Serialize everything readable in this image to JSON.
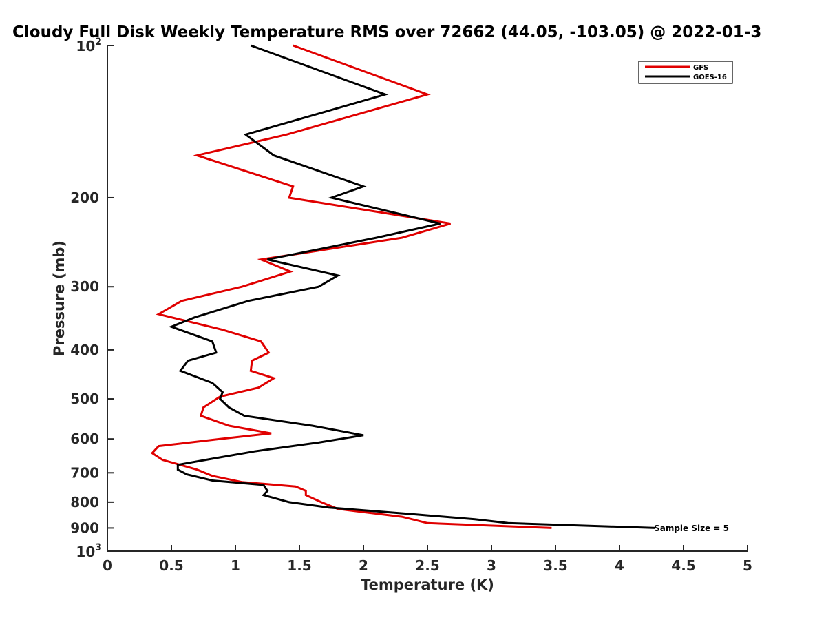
{
  "chart_data": {
    "type": "line",
    "title": "Cloudy Full Disk Weekly Temperature RMS over 72662 (44.05, -103.05) @ 2022-01-3",
    "xlabel": "Temperature (K)",
    "ylabel": "Pressure (mb)",
    "xlim": [
      0,
      5
    ],
    "ylim": [
      100,
      1000
    ],
    "y_scale": "log",
    "y_reversed": true,
    "grid": false,
    "legend_position": "top-right",
    "x_ticks": [
      {
        "value": 0,
        "label": "0"
      },
      {
        "value": 0.5,
        "label": "0.5"
      },
      {
        "value": 1,
        "label": "1"
      },
      {
        "value": 1.5,
        "label": "1.5"
      },
      {
        "value": 2,
        "label": "2"
      },
      {
        "value": 2.5,
        "label": "2.5"
      },
      {
        "value": 3,
        "label": "3"
      },
      {
        "value": 3.5,
        "label": "3.5"
      },
      {
        "value": 4,
        "label": "4"
      },
      {
        "value": 4.5,
        "label": "4.5"
      },
      {
        "value": 5,
        "label": "5"
      }
    ],
    "y_ticks": [
      {
        "value": 200,
        "label": "200"
      },
      {
        "value": 300,
        "label": "300"
      },
      {
        "value": 400,
        "label": "400"
      },
      {
        "value": 500,
        "label": "500"
      },
      {
        "value": 600,
        "label": "600"
      },
      {
        "value": 700,
        "label": "700"
      },
      {
        "value": 800,
        "label": "800"
      },
      {
        "value": 900,
        "label": "900"
      }
    ],
    "y_power_ticks": [
      {
        "value": 100,
        "base": "10",
        "exp": "2"
      },
      {
        "value": 1000,
        "base": "10",
        "exp": "3"
      }
    ],
    "annotation": "Sample Size = 5",
    "series": [
      {
        "name": "GFS",
        "color": "#e00000",
        "points": [
          [
            1.45,
            100
          ],
          [
            2.5,
            125
          ],
          [
            1.4,
            150
          ],
          [
            0.7,
            165
          ],
          [
            1.45,
            190
          ],
          [
            1.42,
            200
          ],
          [
            2.68,
            225
          ],
          [
            2.3,
            240
          ],
          [
            1.2,
            265
          ],
          [
            1.43,
            280
          ],
          [
            1.05,
            300
          ],
          [
            0.58,
            320
          ],
          [
            0.4,
            340
          ],
          [
            0.9,
            365
          ],
          [
            1.2,
            385
          ],
          [
            1.26,
            405
          ],
          [
            1.13,
            420
          ],
          [
            1.12,
            440
          ],
          [
            1.3,
            455
          ],
          [
            1.18,
            475
          ],
          [
            0.88,
            495
          ],
          [
            0.75,
            520
          ],
          [
            0.73,
            540
          ],
          [
            0.95,
            565
          ],
          [
            1.28,
            585
          ],
          [
            0.88,
            600
          ],
          [
            0.4,
            620
          ],
          [
            0.35,
            640
          ],
          [
            0.43,
            660
          ],
          [
            0.7,
            690
          ],
          [
            0.82,
            710
          ],
          [
            1.05,
            730
          ],
          [
            1.47,
            745
          ],
          [
            1.55,
            760
          ],
          [
            1.55,
            775
          ],
          [
            1.67,
            800
          ],
          [
            1.8,
            825
          ],
          [
            2.3,
            855
          ],
          [
            2.5,
            880
          ],
          [
            3.47,
            900
          ]
        ]
      },
      {
        "name": "GOES-16",
        "color": "#000000",
        "points": [
          [
            1.12,
            100
          ],
          [
            2.17,
            125
          ],
          [
            1.08,
            150
          ],
          [
            1.3,
            165
          ],
          [
            2.0,
            190
          ],
          [
            1.75,
            200
          ],
          [
            2.6,
            225
          ],
          [
            2.1,
            240
          ],
          [
            1.25,
            265
          ],
          [
            1.8,
            285
          ],
          [
            1.65,
            300
          ],
          [
            1.1,
            320
          ],
          [
            0.68,
            345
          ],
          [
            0.5,
            360
          ],
          [
            0.82,
            385
          ],
          [
            0.85,
            405
          ],
          [
            0.63,
            420
          ],
          [
            0.57,
            440
          ],
          [
            0.82,
            465
          ],
          [
            0.9,
            485
          ],
          [
            0.88,
            500
          ],
          [
            0.95,
            520
          ],
          [
            1.07,
            540
          ],
          [
            1.6,
            565
          ],
          [
            2.0,
            590
          ],
          [
            1.65,
            610
          ],
          [
            1.15,
            635
          ],
          [
            0.77,
            660
          ],
          [
            0.55,
            675
          ],
          [
            0.55,
            690
          ],
          [
            0.62,
            705
          ],
          [
            0.82,
            725
          ],
          [
            1.22,
            740
          ],
          [
            1.25,
            760
          ],
          [
            1.22,
            775
          ],
          [
            1.42,
            800
          ],
          [
            1.73,
            820
          ],
          [
            2.38,
            845
          ],
          [
            2.87,
            865
          ],
          [
            3.13,
            880
          ],
          [
            4.28,
            900
          ]
        ]
      }
    ]
  }
}
